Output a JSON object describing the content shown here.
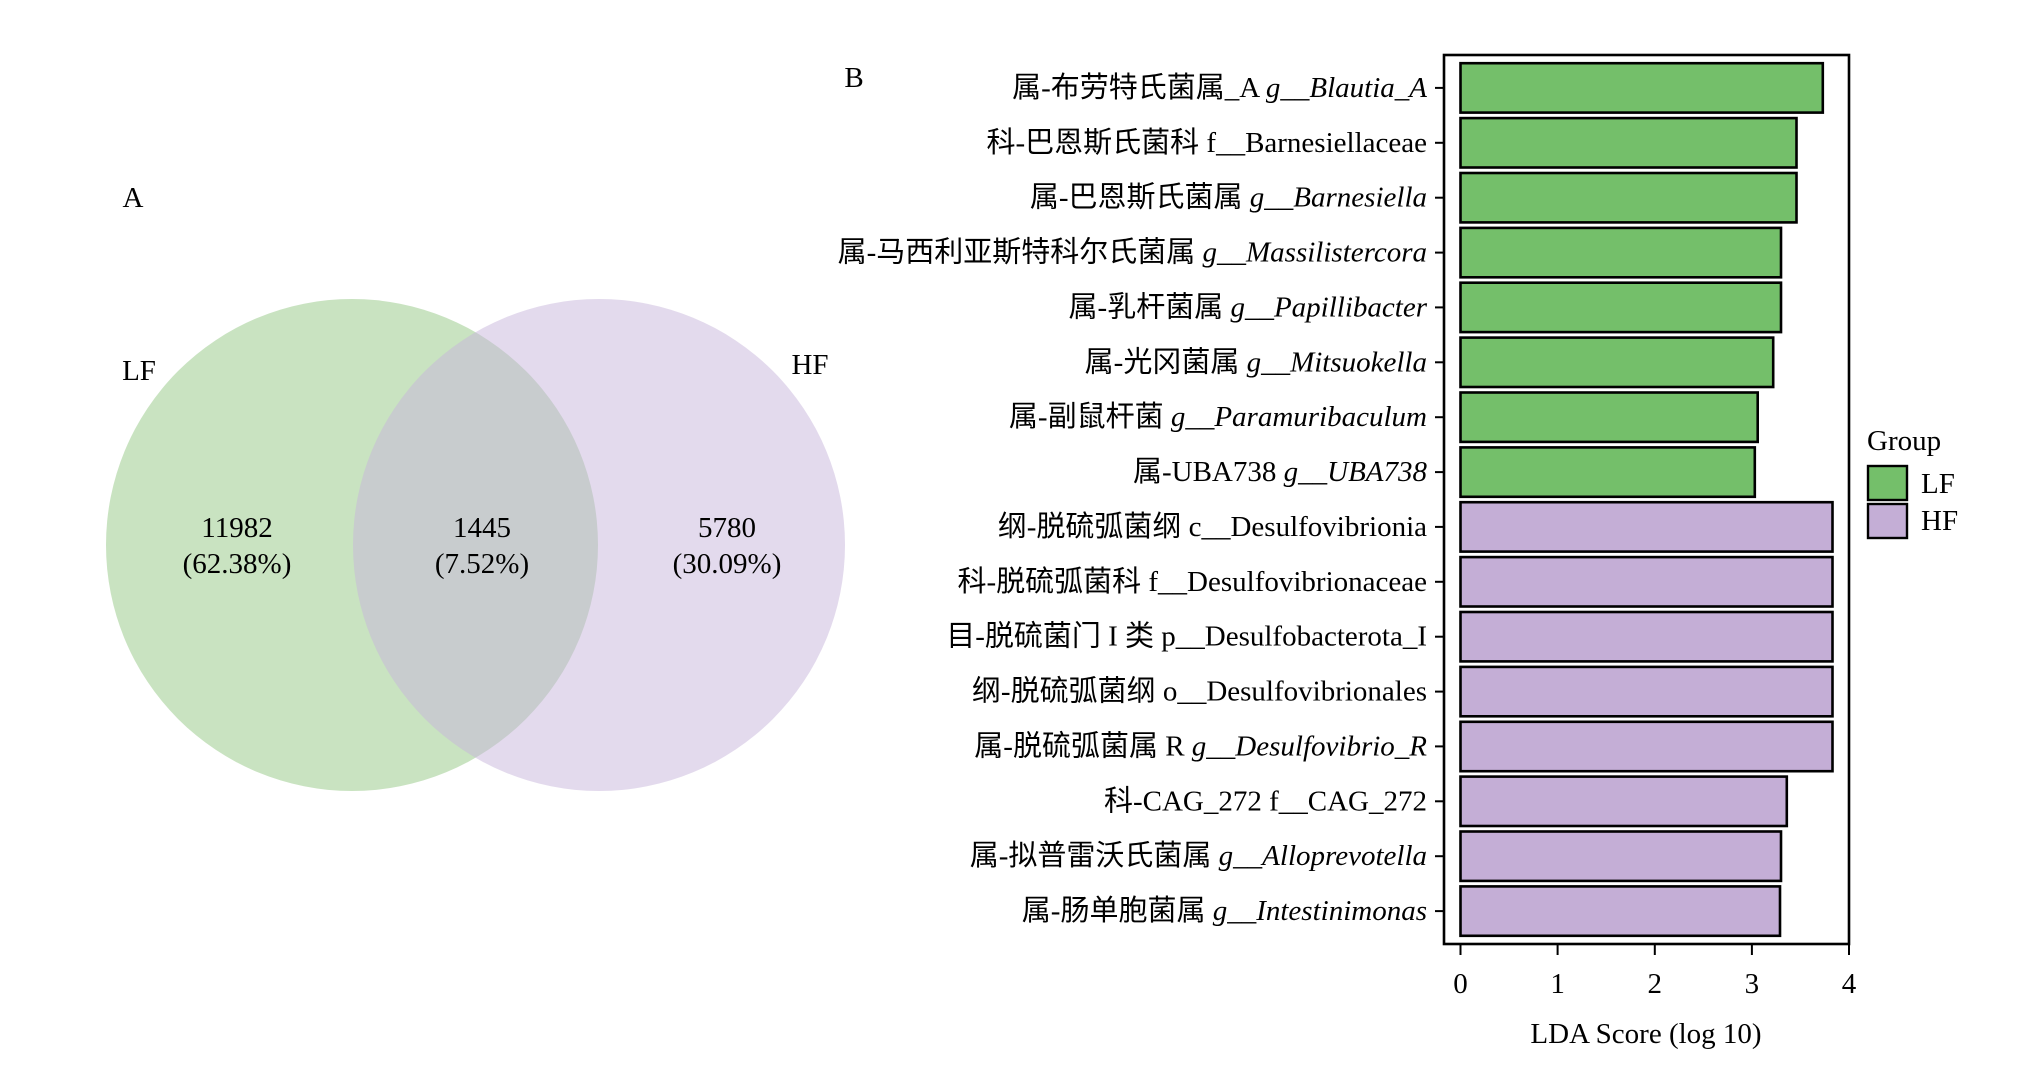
{
  "chart_data": [
    {
      "type": "venn",
      "panel_label": "A",
      "sets": [
        {
          "name": "LF",
          "color": "#93C783"
        },
        {
          "name": "HF",
          "color": "#C7B5DB"
        }
      ],
      "regions": [
        {
          "sets": [
            "LF"
          ],
          "count": 11982,
          "percent": 62.38
        },
        {
          "sets": [
            "LF",
            "HF"
          ],
          "count": 1445,
          "percent": 7.52
        },
        {
          "sets": [
            "HF"
          ],
          "count": 5780,
          "percent": 30.09
        }
      ]
    },
    {
      "type": "bar",
      "orientation": "horizontal",
      "panel_label": "B",
      "categories": [
        {
          "prefix": "属-布劳特氏菌属_A",
          "taxon": "g__Blautia_A"
        },
        {
          "prefix": "科-巴恩斯氏菌科",
          "taxon": "f__Barnesiellaceae"
        },
        {
          "prefix": "属-巴恩斯氏菌属",
          "taxon": "g__Barnesiella"
        },
        {
          "prefix": "属-马西利亚斯特科尔氏菌属",
          "taxon": "g__Massilistercora"
        },
        {
          "prefix": "属-乳杆菌属",
          "taxon": "g__Papillibacter"
        },
        {
          "prefix": "属-光冈菌属",
          "taxon": "g__Mitsuokella"
        },
        {
          "prefix": "属-副鼠杆菌",
          "taxon": "g__Paramuribaculum"
        },
        {
          "prefix": "属-UBA738",
          "taxon": "g__UBA738"
        },
        {
          "prefix": "纲-脱硫弧菌纲",
          "taxon": "c__Desulfovibrionia"
        },
        {
          "prefix": "科-脱硫弧菌科",
          "taxon": "f__Desulfovibrionaceae"
        },
        {
          "prefix": "目-脱硫菌门 I 类",
          "taxon": "p__Desulfobacterota_I"
        },
        {
          "prefix": "纲-脱硫弧菌纲",
          "taxon": "o__Desulfovibrionales"
        },
        {
          "prefix": "属-脱硫弧菌属 R",
          "taxon": "g__Desulfovibrio_R"
        },
        {
          "prefix": "科-CAG_272",
          "taxon": "f__CAG_272"
        },
        {
          "prefix": "属-拟普雷沃氏菌属",
          "taxon": "g__Alloprevotella"
        },
        {
          "prefix": "属-肠单胞菌属",
          "taxon": "g__Intestinimonas"
        }
      ],
      "values": [
        3.73,
        3.46,
        3.46,
        3.3,
        3.3,
        3.22,
        3.06,
        3.03,
        3.83,
        3.83,
        3.83,
        3.83,
        3.83,
        3.36,
        3.3,
        3.29
      ],
      "groups": [
        "LF",
        "LF",
        "LF",
        "LF",
        "LF",
        "LF",
        "LF",
        "LF",
        "HF",
        "HF",
        "HF",
        "HF",
        "HF",
        "HF",
        "HF",
        "HF"
      ],
      "xlabel": "LDA Score (log 10)",
      "xlim": [
        -0.17,
        4
      ],
      "xticks": [
        0,
        1,
        2,
        3,
        4
      ],
      "grid": false,
      "legend": {
        "title": "Group",
        "position": "right",
        "entries": [
          {
            "name": "LF",
            "color": "#74BF6A"
          },
          {
            "name": "HF",
            "color": "#C4AED6"
          }
        ]
      }
    }
  ]
}
